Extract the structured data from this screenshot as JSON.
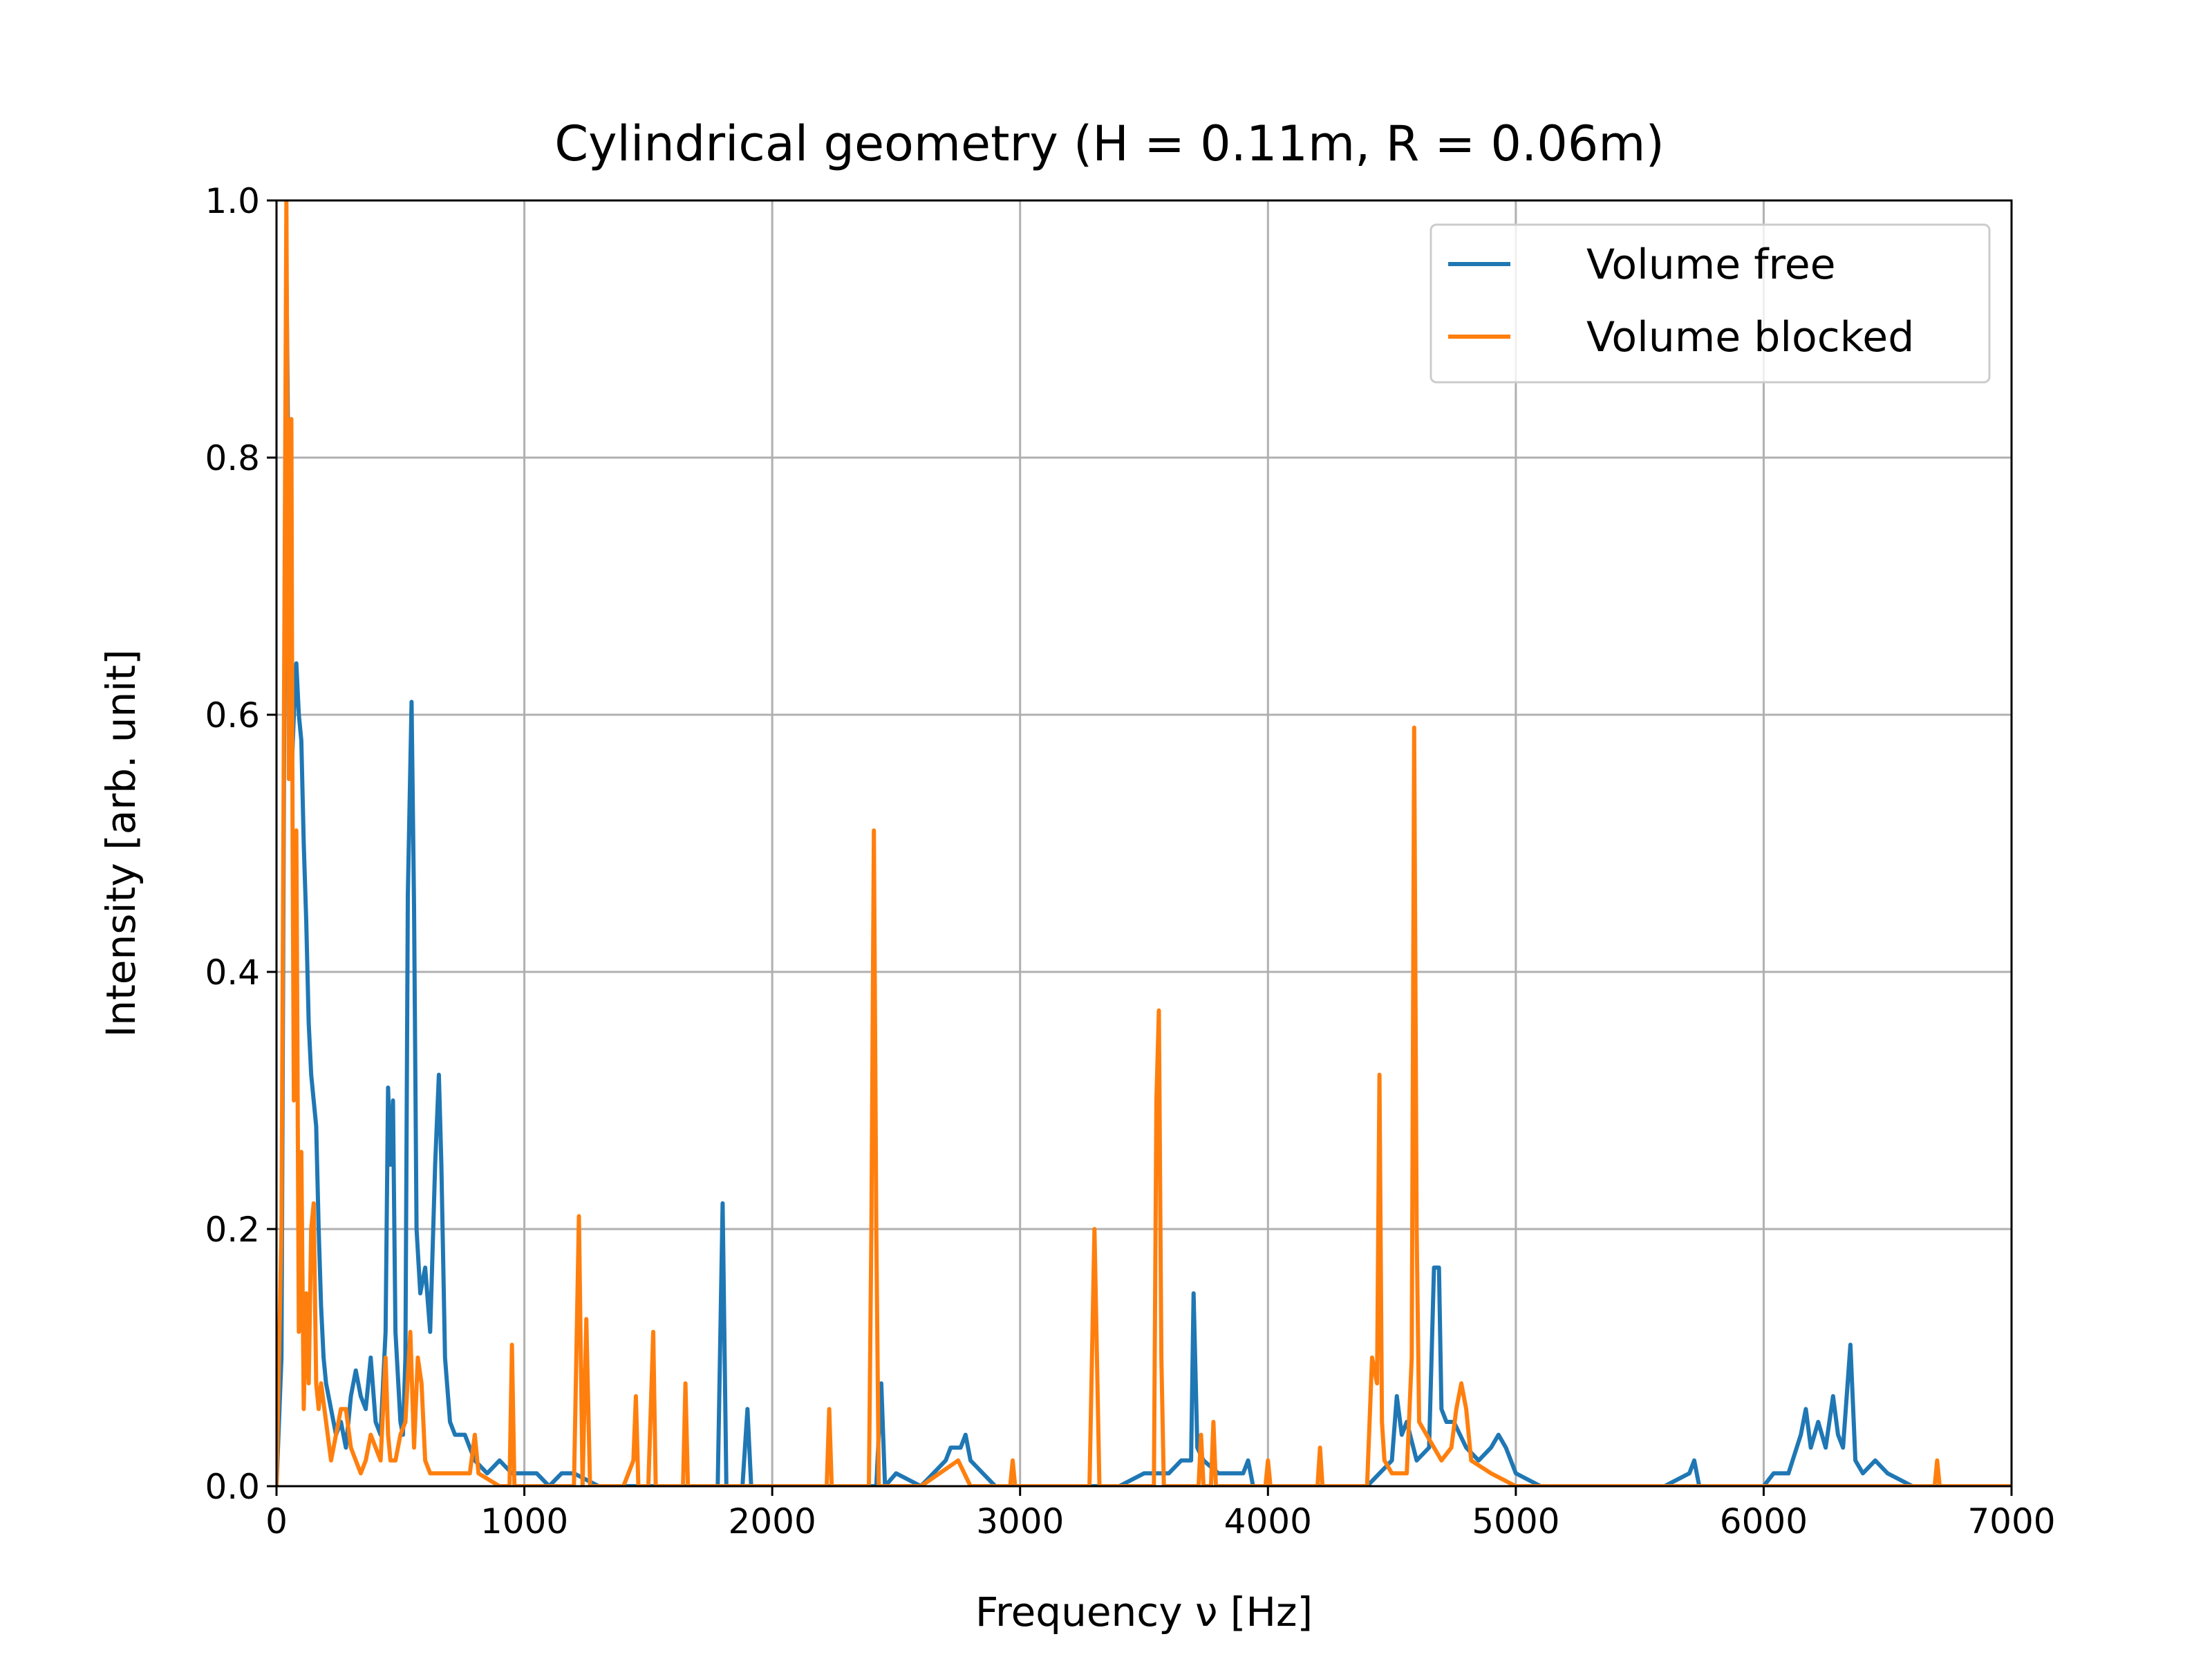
{
  "chart_data": {
    "type": "line",
    "title": "Cylindrical geometry (H = 0.11m, R = 0.06m)",
    "xlabel": "Frequency ν [Hz]",
    "ylabel": "Intensity [arb. unit]",
    "xlim": [
      0,
      7000
    ],
    "ylim": [
      0,
      1.0
    ],
    "xticks": [
      "0",
      "1000",
      "2000",
      "3000",
      "4000",
      "5000",
      "6000",
      "7000"
    ],
    "yticks": [
      "0.0",
      "0.2",
      "0.4",
      "0.6",
      "0.8",
      "1.0"
    ],
    "grid": true,
    "legend_position": "top-right",
    "series": [
      {
        "name": "Volume free",
        "color": "#1f77b4",
        "points": [
          [
            0,
            0.0
          ],
          [
            20,
            0.1
          ],
          [
            30,
            0.55
          ],
          [
            40,
            0.95
          ],
          [
            50,
            0.75
          ],
          [
            60,
            0.55
          ],
          [
            70,
            0.6
          ],
          [
            80,
            0.64
          ],
          [
            90,
            0.6
          ],
          [
            100,
            0.58
          ],
          [
            110,
            0.5
          ],
          [
            120,
            0.44
          ],
          [
            130,
            0.36
          ],
          [
            140,
            0.32
          ],
          [
            150,
            0.3
          ],
          [
            160,
            0.28
          ],
          [
            170,
            0.2
          ],
          [
            180,
            0.14
          ],
          [
            190,
            0.1
          ],
          [
            200,
            0.08
          ],
          [
            220,
            0.06
          ],
          [
            240,
            0.04
          ],
          [
            260,
            0.05
          ],
          [
            280,
            0.03
          ],
          [
            300,
            0.07
          ],
          [
            320,
            0.09
          ],
          [
            340,
            0.07
          ],
          [
            360,
            0.06
          ],
          [
            380,
            0.1
          ],
          [
            400,
            0.05
          ],
          [
            420,
            0.04
          ],
          [
            440,
            0.12
          ],
          [
            450,
            0.31
          ],
          [
            460,
            0.25
          ],
          [
            470,
            0.3
          ],
          [
            480,
            0.12
          ],
          [
            500,
            0.05
          ],
          [
            510,
            0.04
          ],
          [
            520,
            0.1
          ],
          [
            530,
            0.46
          ],
          [
            545,
            0.61
          ],
          [
            555,
            0.45
          ],
          [
            565,
            0.2
          ],
          [
            580,
            0.15
          ],
          [
            600,
            0.17
          ],
          [
            620,
            0.12
          ],
          [
            640,
            0.25
          ],
          [
            655,
            0.32
          ],
          [
            665,
            0.25
          ],
          [
            680,
            0.1
          ],
          [
            700,
            0.05
          ],
          [
            720,
            0.04
          ],
          [
            760,
            0.04
          ],
          [
            800,
            0.02
          ],
          [
            850,
            0.01
          ],
          [
            900,
            0.02
          ],
          [
            950,
            0.01
          ],
          [
            1000,
            0.01
          ],
          [
            1050,
            0.01
          ],
          [
            1100,
            0.0
          ],
          [
            1150,
            0.01
          ],
          [
            1200,
            0.01
          ],
          [
            1300,
            0.0
          ],
          [
            1400,
            0.0
          ],
          [
            1500,
            0.0
          ],
          [
            1600,
            0.0
          ],
          [
            1700,
            0.0
          ],
          [
            1780,
            0.0
          ],
          [
            1800,
            0.22
          ],
          [
            1815,
            0.0
          ],
          [
            1880,
            0.0
          ],
          [
            1900,
            0.06
          ],
          [
            1915,
            0.0
          ],
          [
            2000,
            0.0
          ],
          [
            2100,
            0.0
          ],
          [
            2200,
            0.0
          ],
          [
            2300,
            0.0
          ],
          [
            2400,
            0.0
          ],
          [
            2420,
            0.0
          ],
          [
            2440,
            0.08
          ],
          [
            2455,
            0.0
          ],
          [
            2500,
            0.01
          ],
          [
            2600,
            0.0
          ],
          [
            2700,
            0.02
          ],
          [
            2720,
            0.03
          ],
          [
            2760,
            0.03
          ],
          [
            2780,
            0.04
          ],
          [
            2800,
            0.02
          ],
          [
            2850,
            0.01
          ],
          [
            2900,
            0.0
          ],
          [
            3000,
            0.0
          ],
          [
            3100,
            0.0
          ],
          [
            3200,
            0.0
          ],
          [
            3300,
            0.0
          ],
          [
            3400,
            0.0
          ],
          [
            3500,
            0.01
          ],
          [
            3550,
            0.01
          ],
          [
            3600,
            0.01
          ],
          [
            3650,
            0.02
          ],
          [
            3690,
            0.02
          ],
          [
            3700,
            0.15
          ],
          [
            3715,
            0.03
          ],
          [
            3740,
            0.02
          ],
          [
            3800,
            0.01
          ],
          [
            3900,
            0.01
          ],
          [
            3920,
            0.02
          ],
          [
            3940,
            0.0
          ],
          [
            4000,
            0.0
          ],
          [
            4100,
            0.0
          ],
          [
            4200,
            0.0
          ],
          [
            4300,
            0.0
          ],
          [
            4400,
            0.0
          ],
          [
            4500,
            0.02
          ],
          [
            4520,
            0.07
          ],
          [
            4540,
            0.04
          ],
          [
            4560,
            0.05
          ],
          [
            4600,
            0.02
          ],
          [
            4650,
            0.03
          ],
          [
            4670,
            0.17
          ],
          [
            4690,
            0.17
          ],
          [
            4700,
            0.06
          ],
          [
            4720,
            0.05
          ],
          [
            4750,
            0.05
          ],
          [
            4800,
            0.03
          ],
          [
            4850,
            0.02
          ],
          [
            4900,
            0.03
          ],
          [
            4930,
            0.04
          ],
          [
            4960,
            0.03
          ],
          [
            5000,
            0.01
          ],
          [
            5100,
            0.0
          ],
          [
            5200,
            0.0
          ],
          [
            5300,
            0.0
          ],
          [
            5400,
            0.0
          ],
          [
            5500,
            0.0
          ],
          [
            5600,
            0.0
          ],
          [
            5700,
            0.01
          ],
          [
            5720,
            0.02
          ],
          [
            5740,
            0.0
          ],
          [
            5800,
            0.0
          ],
          [
            5900,
            0.0
          ],
          [
            6000,
            0.0
          ],
          [
            6040,
            0.01
          ],
          [
            6100,
            0.01
          ],
          [
            6150,
            0.04
          ],
          [
            6170,
            0.06
          ],
          [
            6190,
            0.03
          ],
          [
            6220,
            0.05
          ],
          [
            6250,
            0.03
          ],
          [
            6280,
            0.07
          ],
          [
            6300,
            0.04
          ],
          [
            6320,
            0.03
          ],
          [
            6350,
            0.11
          ],
          [
            6370,
            0.02
          ],
          [
            6400,
            0.01
          ],
          [
            6450,
            0.02
          ],
          [
            6500,
            0.01
          ],
          [
            6600,
            0.0
          ],
          [
            6700,
            0.0
          ],
          [
            6800,
            0.0
          ],
          [
            7000,
            0.0
          ]
        ]
      },
      {
        "name": "Volume blocked",
        "color": "#ff7f0e",
        "points": [
          [
            0,
            0.0
          ],
          [
            20,
            0.2
          ],
          [
            30,
            0.6
          ],
          [
            40,
            1.0
          ],
          [
            50,
            0.55
          ],
          [
            55,
            0.8
          ],
          [
            60,
            0.83
          ],
          [
            65,
            0.5
          ],
          [
            70,
            0.3
          ],
          [
            80,
            0.51
          ],
          [
            90,
            0.12
          ],
          [
            100,
            0.26
          ],
          [
            110,
            0.06
          ],
          [
            120,
            0.15
          ],
          [
            130,
            0.08
          ],
          [
            140,
            0.2
          ],
          [
            150,
            0.22
          ],
          [
            160,
            0.08
          ],
          [
            170,
            0.06
          ],
          [
            180,
            0.08
          ],
          [
            200,
            0.05
          ],
          [
            220,
            0.02
          ],
          [
            240,
            0.04
          ],
          [
            260,
            0.06
          ],
          [
            280,
            0.06
          ],
          [
            300,
            0.03
          ],
          [
            320,
            0.02
          ],
          [
            340,
            0.01
          ],
          [
            360,
            0.02
          ],
          [
            380,
            0.04
          ],
          [
            400,
            0.03
          ],
          [
            420,
            0.02
          ],
          [
            440,
            0.1
          ],
          [
            450,
            0.04
          ],
          [
            460,
            0.02
          ],
          [
            480,
            0.02
          ],
          [
            500,
            0.04
          ],
          [
            520,
            0.05
          ],
          [
            540,
            0.12
          ],
          [
            555,
            0.03
          ],
          [
            570,
            0.1
          ],
          [
            585,
            0.08
          ],
          [
            600,
            0.02
          ],
          [
            620,
            0.01
          ],
          [
            700,
            0.01
          ],
          [
            780,
            0.01
          ],
          [
            800,
            0.04
          ],
          [
            815,
            0.01
          ],
          [
            900,
            0.0
          ],
          [
            940,
            0.0
          ],
          [
            950,
            0.11
          ],
          [
            960,
            0.0
          ],
          [
            1100,
            0.0
          ],
          [
            1200,
            0.0
          ],
          [
            1220,
            0.21
          ],
          [
            1235,
            0.0
          ],
          [
            1250,
            0.13
          ],
          [
            1265,
            0.0
          ],
          [
            1400,
            0.0
          ],
          [
            1440,
            0.02
          ],
          [
            1450,
            0.07
          ],
          [
            1460,
            0.0
          ],
          [
            1500,
            0.0
          ],
          [
            1520,
            0.12
          ],
          [
            1530,
            0.0
          ],
          [
            1640,
            0.0
          ],
          [
            1650,
            0.08
          ],
          [
            1660,
            0.0
          ],
          [
            1800,
            0.0
          ],
          [
            2000,
            0.0
          ],
          [
            2100,
            0.0
          ],
          [
            2220,
            0.0
          ],
          [
            2230,
            0.06
          ],
          [
            2240,
            0.0
          ],
          [
            2390,
            0.0
          ],
          [
            2400,
            0.2
          ],
          [
            2410,
            0.51
          ],
          [
            2420,
            0.2
          ],
          [
            2430,
            0.0
          ],
          [
            2600,
            0.0
          ],
          [
            2750,
            0.02
          ],
          [
            2800,
            0.0
          ],
          [
            2960,
            0.0
          ],
          [
            2970,
            0.02
          ],
          [
            2980,
            0.0
          ],
          [
            3200,
            0.0
          ],
          [
            3280,
            0.0
          ],
          [
            3290,
            0.1
          ],
          [
            3300,
            0.2
          ],
          [
            3310,
            0.1
          ],
          [
            3320,
            0.0
          ],
          [
            3540,
            0.0
          ],
          [
            3550,
            0.3
          ],
          [
            3560,
            0.37
          ],
          [
            3570,
            0.1
          ],
          [
            3580,
            0.0
          ],
          [
            3720,
            0.0
          ],
          [
            3730,
            0.04
          ],
          [
            3740,
            0.0
          ],
          [
            3770,
            0.0
          ],
          [
            3780,
            0.05
          ],
          [
            3790,
            0.0
          ],
          [
            3990,
            0.0
          ],
          [
            4000,
            0.02
          ],
          [
            4010,
            0.0
          ],
          [
            4200,
            0.0
          ],
          [
            4210,
            0.03
          ],
          [
            4220,
            0.0
          ],
          [
            4400,
            0.0
          ],
          [
            4420,
            0.1
          ],
          [
            4440,
            0.08
          ],
          [
            4450,
            0.32
          ],
          [
            4460,
            0.05
          ],
          [
            4470,
            0.02
          ],
          [
            4500,
            0.01
          ],
          [
            4560,
            0.01
          ],
          [
            4580,
            0.1
          ],
          [
            4590,
            0.59
          ],
          [
            4600,
            0.2
          ],
          [
            4610,
            0.05
          ],
          [
            4700,
            0.02
          ],
          [
            4740,
            0.03
          ],
          [
            4760,
            0.06
          ],
          [
            4780,
            0.08
          ],
          [
            4800,
            0.06
          ],
          [
            4820,
            0.02
          ],
          [
            4900,
            0.01
          ],
          [
            5000,
            0.0
          ],
          [
            5500,
            0.0
          ],
          [
            5800,
            0.0
          ],
          [
            6000,
            0.0
          ],
          [
            6600,
            0.0
          ],
          [
            6690,
            0.0
          ],
          [
            6700,
            0.02
          ],
          [
            6710,
            0.0
          ],
          [
            7000,
            0.0
          ]
        ]
      }
    ]
  }
}
